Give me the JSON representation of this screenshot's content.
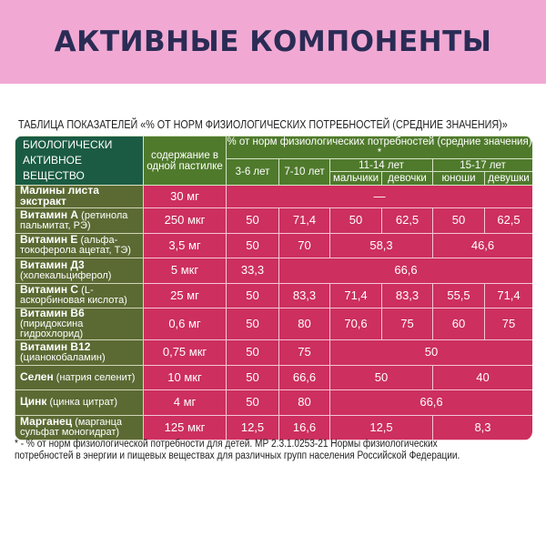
{
  "title": "АКТИВНЫЕ КОМПОНЕНТЫ",
  "caption": "ТАБЛИЦА ПОКАЗАТЕЛЕЙ «% ОТ НОРМ ФИЗИОЛОГИЧЕСКИХ ПОТРЕБНОСТЕЙ (СРЕДНИЕ ЗНАЧЕНИЯ)»",
  "header": {
    "substance": "БИОЛОГИЧЕСКИ АКТИВНОЕ ВЕЩЕСТВО",
    "content": "содержание в одной пастилке",
    "percent": "% от норм физиологических потребностей (средние значения) *",
    "age_3_6": "3-6 лет",
    "age_7_10": "7-10 лет",
    "age_11_14": "11-14 лет",
    "age_15_17": "15-17 лет",
    "boys": "мальчики",
    "girls": "девочки",
    "youths": "юноши",
    "young_women": "девушки"
  },
  "rows": [
    {
      "name": "Малины листа экстракт",
      "sub": "",
      "content": "30 мг",
      "cells": [
        {
          "v": "—",
          "span": 6
        }
      ]
    },
    {
      "name": "Витамин А",
      "sub": "(ретинола пальмитат, РЭ)",
      "content": "250 мкг",
      "cells": [
        {
          "v": "50",
          "span": 1
        },
        {
          "v": "71,4",
          "span": 1
        },
        {
          "v": "50",
          "span": 1
        },
        {
          "v": "62,5",
          "span": 1
        },
        {
          "v": "50",
          "span": 1
        },
        {
          "v": "62,5",
          "span": 1
        }
      ]
    },
    {
      "name": "Витамин Е",
      "sub": "(альфа-токоферола ацетат, ТЭ)",
      "content": "3,5 мг",
      "cells": [
        {
          "v": "50",
          "span": 1
        },
        {
          "v": "70",
          "span": 1
        },
        {
          "v": "58,3",
          "span": 2
        },
        {
          "v": "46,6",
          "span": 2
        }
      ]
    },
    {
      "name": "Витамин Д3",
      "sub": "(холекальциферол)",
      "content": "5 мкг",
      "cells": [
        {
          "v": "33,3",
          "span": 1
        },
        {
          "v": "66,6",
          "span": 5
        }
      ]
    },
    {
      "name": "Витамин С",
      "sub": "(L-аскорбиновая кислота)",
      "content": "25 мг",
      "cells": [
        {
          "v": "50",
          "span": 1
        },
        {
          "v": "83,3",
          "span": 1
        },
        {
          "v": "71,4",
          "span": 1
        },
        {
          "v": "83,3",
          "span": 1
        },
        {
          "v": "55,5",
          "span": 1
        },
        {
          "v": "71,4",
          "span": 1
        }
      ]
    },
    {
      "name": "Витамин В6",
      "sub": "(пиридоксина гидрохлорид)",
      "content": "0,6 мг",
      "cells": [
        {
          "v": "50",
          "span": 1
        },
        {
          "v": "80",
          "span": 1
        },
        {
          "v": "70,6",
          "span": 1
        },
        {
          "v": "75",
          "span": 1
        },
        {
          "v": "60",
          "span": 1
        },
        {
          "v": "75",
          "span": 1
        }
      ]
    },
    {
      "name": "Витамин В12",
      "sub": "(цианокобаламин)",
      "content": "0,75 мкг",
      "cells": [
        {
          "v": "50",
          "span": 1
        },
        {
          "v": "75",
          "span": 1
        },
        {
          "v": "50",
          "span": 4
        }
      ]
    },
    {
      "name": "Селен",
      "sub": "(натрия селенит)",
      "content": "10 мкг",
      "cells": [
        {
          "v": "50",
          "span": 1
        },
        {
          "v": "66,6",
          "span": 1
        },
        {
          "v": "50",
          "span": 2
        },
        {
          "v": "40",
          "span": 2
        }
      ]
    },
    {
      "name": "Цинк",
      "sub": "(цинка цитрат)",
      "content": "4 мг",
      "cells": [
        {
          "v": "50",
          "span": 1
        },
        {
          "v": "80",
          "span": 1
        },
        {
          "v": "66,6",
          "span": 4
        }
      ]
    },
    {
      "name": "Марганец",
      "sub": "(марганца сульфат моногидрат)",
      "content": "125 мкг",
      "cells": [
        {
          "v": "12,5",
          "span": 1
        },
        {
          "v": "16,6",
          "span": 1
        },
        {
          "v": "12,5",
          "span": 2
        },
        {
          "v": "8,3",
          "span": 2
        }
      ]
    }
  ],
  "footnote": "* - % от норм физиологической потребности для детей. МР 2.3.1.0253-21 Нормы физиологических потребностей в энергии и пищевых веществах для различных групп населения Российской Федерации.",
  "colors": {
    "banner": "#f1a9d3",
    "title": "#2a2c55",
    "header_dark": "#1b5b44",
    "header_green": "#4f7a2c",
    "name_cell": "#5b6a33",
    "value_cell": "#cd2f5f"
  }
}
